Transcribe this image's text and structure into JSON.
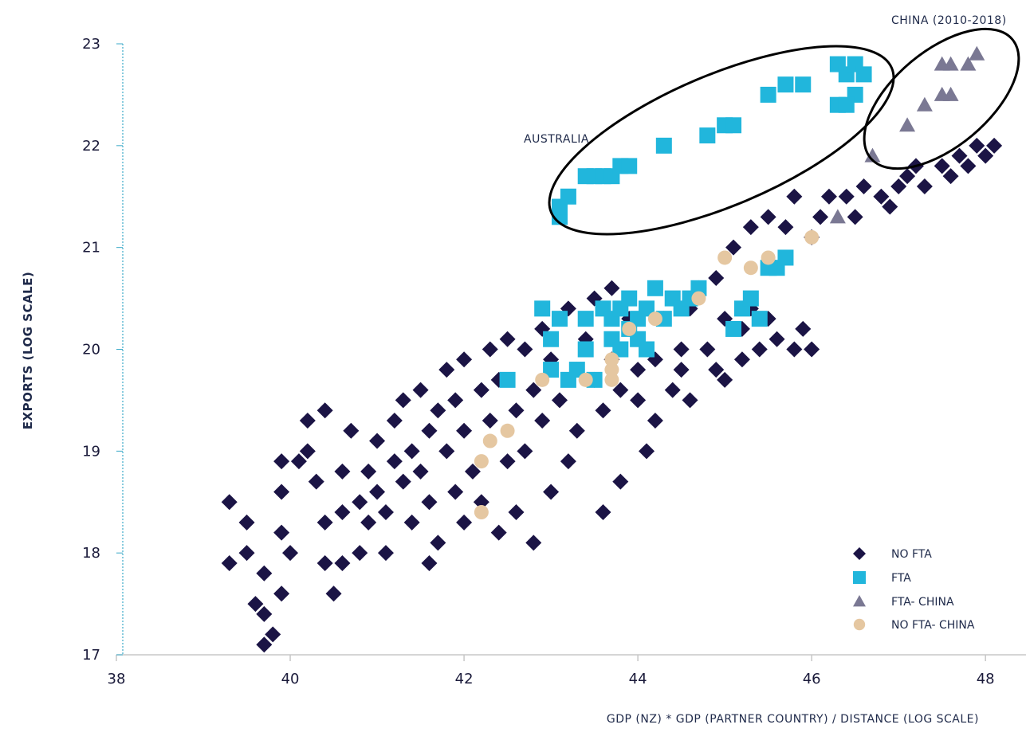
{
  "chart_data": {
    "type": "scatter",
    "xlabel": "GDP (NZ) * GDP (PARTNER COUNTRY) / DISTANCE (LOG SCALE)",
    "ylabel": "EXPORTS (LOG SCALE)",
    "xlim": [
      38,
      48.2
    ],
    "ylim": [
      17,
      23
    ],
    "x_ticks": [
      "38",
      "40",
      "42",
      "44",
      "46",
      "48"
    ],
    "y_ticks": [
      "17",
      "18",
      "19",
      "20",
      "21",
      "22",
      "23"
    ],
    "grid": false,
    "legend_position": "bottom-right",
    "annotations": [
      {
        "text": "AUSTRALIA"
      },
      {
        "text": "CHINA (2010-2018)"
      }
    ],
    "series": [
      {
        "name": "NO FTA",
        "marker": "diamond",
        "color": "#1b1445",
        "points": [
          [
            39.3,
            18.5
          ],
          [
            39.3,
            17.9
          ],
          [
            39.5,
            18.3
          ],
          [
            39.5,
            18.0
          ],
          [
            39.6,
            17.5
          ],
          [
            39.7,
            17.4
          ],
          [
            39.7,
            17.1
          ],
          [
            39.8,
            17.2
          ],
          [
            39.7,
            17.8
          ],
          [
            39.9,
            17.6
          ],
          [
            39.9,
            18.2
          ],
          [
            40.0,
            18.0
          ],
          [
            39.9,
            18.6
          ],
          [
            39.9,
            18.9
          ],
          [
            40.1,
            18.9
          ],
          [
            40.2,
            19.0
          ],
          [
            40.2,
            19.3
          ],
          [
            40.4,
            19.4
          ],
          [
            40.3,
            18.7
          ],
          [
            40.4,
            18.3
          ],
          [
            40.4,
            17.9
          ],
          [
            40.5,
            17.6
          ],
          [
            40.6,
            17.9
          ],
          [
            40.6,
            18.4
          ],
          [
            40.6,
            18.8
          ],
          [
            40.7,
            19.2
          ],
          [
            40.8,
            18.5
          ],
          [
            40.8,
            18.0
          ],
          [
            40.9,
            18.3
          ],
          [
            40.9,
            18.8
          ],
          [
            41.0,
            19.1
          ],
          [
            41.0,
            18.6
          ],
          [
            41.1,
            18.4
          ],
          [
            41.1,
            18.0
          ],
          [
            41.2,
            19.3
          ],
          [
            41.2,
            18.9
          ],
          [
            41.3,
            19.5
          ],
          [
            41.3,
            18.7
          ],
          [
            41.4,
            19.0
          ],
          [
            41.4,
            18.3
          ],
          [
            41.5,
            18.8
          ],
          [
            41.5,
            19.6
          ],
          [
            41.6,
            19.2
          ],
          [
            41.6,
            18.5
          ],
          [
            41.6,
            17.9
          ],
          [
            41.7,
            19.4
          ],
          [
            41.7,
            18.1
          ],
          [
            41.8,
            19.8
          ],
          [
            41.8,
            19.0
          ],
          [
            41.9,
            18.6
          ],
          [
            41.9,
            19.5
          ],
          [
            42.0,
            19.9
          ],
          [
            42.0,
            19.2
          ],
          [
            42.0,
            18.3
          ],
          [
            42.1,
            18.8
          ],
          [
            42.2,
            19.6
          ],
          [
            42.2,
            18.5
          ],
          [
            42.3,
            20.0
          ],
          [
            42.3,
            19.3
          ],
          [
            42.4,
            18.2
          ],
          [
            42.4,
            19.7
          ],
          [
            42.5,
            20.1
          ],
          [
            42.5,
            18.9
          ],
          [
            42.6,
            19.4
          ],
          [
            42.6,
            18.4
          ],
          [
            42.7,
            20.0
          ],
          [
            42.7,
            19.0
          ],
          [
            42.8,
            19.6
          ],
          [
            42.8,
            18.1
          ],
          [
            42.9,
            20.2
          ],
          [
            42.9,
            19.3
          ],
          [
            43.0,
            18.6
          ],
          [
            43.0,
            19.9
          ],
          [
            43.1,
            20.3
          ],
          [
            43.1,
            19.5
          ],
          [
            43.2,
            18.9
          ],
          [
            43.2,
            20.4
          ],
          [
            43.3,
            19.8
          ],
          [
            43.3,
            19.2
          ],
          [
            43.4,
            20.1
          ],
          [
            43.5,
            19.7
          ],
          [
            43.5,
            20.5
          ],
          [
            43.6,
            19.4
          ],
          [
            43.6,
            18.4
          ],
          [
            43.7,
            20.6
          ],
          [
            43.7,
            19.9
          ],
          [
            43.8,
            19.6
          ],
          [
            43.8,
            18.7
          ],
          [
            43.9,
            20.3
          ],
          [
            44.0,
            19.8
          ],
          [
            44.0,
            19.5
          ],
          [
            44.1,
            20.0
          ],
          [
            44.1,
            19.0
          ],
          [
            44.2,
            19.3
          ],
          [
            44.2,
            19.9
          ],
          [
            44.3,
            20.3
          ],
          [
            44.4,
            19.6
          ],
          [
            44.5,
            20.0
          ],
          [
            44.5,
            19.8
          ],
          [
            44.6,
            20.4
          ],
          [
            44.6,
            19.5
          ],
          [
            44.7,
            20.6
          ],
          [
            44.8,
            20.0
          ],
          [
            44.9,
            19.8
          ],
          [
            44.9,
            20.7
          ],
          [
            45.0,
            20.3
          ],
          [
            45.0,
            19.7
          ],
          [
            45.1,
            21.0
          ],
          [
            45.2,
            20.2
          ],
          [
            45.2,
            19.9
          ],
          [
            45.3,
            20.4
          ],
          [
            45.3,
            21.2
          ],
          [
            45.4,
            20.0
          ],
          [
            45.5,
            20.3
          ],
          [
            45.5,
            21.3
          ],
          [
            45.6,
            20.1
          ],
          [
            45.6,
            20.8
          ],
          [
            45.7,
            21.2
          ],
          [
            45.8,
            20.0
          ],
          [
            45.8,
            21.5
          ],
          [
            45.9,
            20.2
          ],
          [
            46.0,
            21.1
          ],
          [
            46.0,
            20.0
          ],
          [
            46.1,
            21.3
          ],
          [
            46.2,
            21.5
          ],
          [
            46.4,
            21.5
          ],
          [
            46.5,
            21.3
          ],
          [
            46.6,
            21.6
          ],
          [
            46.8,
            21.5
          ],
          [
            46.9,
            21.4
          ],
          [
            47.0,
            21.6
          ],
          [
            47.1,
            21.7
          ],
          [
            47.2,
            21.8
          ],
          [
            47.3,
            21.6
          ],
          [
            47.5,
            21.8
          ],
          [
            47.6,
            21.7
          ],
          [
            47.7,
            21.9
          ],
          [
            47.8,
            21.8
          ],
          [
            47.9,
            22.0
          ],
          [
            48.0,
            21.9
          ],
          [
            48.1,
            22.0
          ]
        ]
      },
      {
        "name": "FTA",
        "marker": "square",
        "color": "#21b6dc",
        "points": [
          [
            42.5,
            19.7
          ],
          [
            42.9,
            20.4
          ],
          [
            43.0,
            20.1
          ],
          [
            43.0,
            19.8
          ],
          [
            43.1,
            20.3
          ],
          [
            43.2,
            19.7
          ],
          [
            43.3,
            19.8
          ],
          [
            43.4,
            20.0
          ],
          [
            43.4,
            20.3
          ],
          [
            43.5,
            19.7
          ],
          [
            43.6,
            20.4
          ],
          [
            43.7,
            20.1
          ],
          [
            43.7,
            20.3
          ],
          [
            43.8,
            20.4
          ],
          [
            43.8,
            20.0
          ],
          [
            43.9,
            20.2
          ],
          [
            43.9,
            20.5
          ],
          [
            44.0,
            20.3
          ],
          [
            44.0,
            20.1
          ],
          [
            44.1,
            20.4
          ],
          [
            44.1,
            20.0
          ],
          [
            44.2,
            20.6
          ],
          [
            44.3,
            20.3
          ],
          [
            44.4,
            20.5
          ],
          [
            44.5,
            20.4
          ],
          [
            44.6,
            20.5
          ],
          [
            44.7,
            20.6
          ],
          [
            45.1,
            20.2
          ],
          [
            45.2,
            20.4
          ],
          [
            45.3,
            20.5
          ],
          [
            45.4,
            20.3
          ],
          [
            45.5,
            20.8
          ],
          [
            45.6,
            20.8
          ],
          [
            45.7,
            20.9
          ],
          [
            43.1,
            21.3
          ],
          [
            43.1,
            21.4
          ],
          [
            43.2,
            21.5
          ],
          [
            43.4,
            21.7
          ],
          [
            43.5,
            21.7
          ],
          [
            43.6,
            21.7
          ],
          [
            43.7,
            21.7
          ],
          [
            43.8,
            21.8
          ],
          [
            43.9,
            21.8
          ],
          [
            44.3,
            22.0
          ],
          [
            44.8,
            22.1
          ],
          [
            45.0,
            22.2
          ],
          [
            45.1,
            22.2
          ],
          [
            45.5,
            22.5
          ],
          [
            45.7,
            22.6
          ],
          [
            45.9,
            22.6
          ],
          [
            46.3,
            22.8
          ],
          [
            46.4,
            22.7
          ],
          [
            46.5,
            22.8
          ],
          [
            46.6,
            22.7
          ],
          [
            46.5,
            22.5
          ],
          [
            46.3,
            22.4
          ],
          [
            46.4,
            22.4
          ]
        ]
      },
      {
        "name": "FTA- CHINA",
        "marker": "triangle",
        "color": "#7a7893",
        "points": [
          [
            46.3,
            21.3
          ],
          [
            46.7,
            21.9
          ],
          [
            47.1,
            22.2
          ],
          [
            47.3,
            22.4
          ],
          [
            47.5,
            22.5
          ],
          [
            47.6,
            22.5
          ],
          [
            47.5,
            22.8
          ],
          [
            47.6,
            22.8
          ],
          [
            47.8,
            22.8
          ],
          [
            47.9,
            22.9
          ]
        ]
      },
      {
        "name": "NO FTA- CHINA",
        "marker": "circle",
        "color": "#e5c7a1",
        "points": [
          [
            42.2,
            18.4
          ],
          [
            42.2,
            18.9
          ],
          [
            42.3,
            19.1
          ],
          [
            42.5,
            19.2
          ],
          [
            42.9,
            19.7
          ],
          [
            43.4,
            19.7
          ],
          [
            43.7,
            19.7
          ],
          [
            43.7,
            19.8
          ],
          [
            43.7,
            19.9
          ],
          [
            43.9,
            20.2
          ],
          [
            44.2,
            20.3
          ],
          [
            44.7,
            20.5
          ],
          [
            45.0,
            20.9
          ],
          [
            45.3,
            20.8
          ],
          [
            45.5,
            20.9
          ],
          [
            46.0,
            21.1
          ]
        ]
      }
    ]
  }
}
